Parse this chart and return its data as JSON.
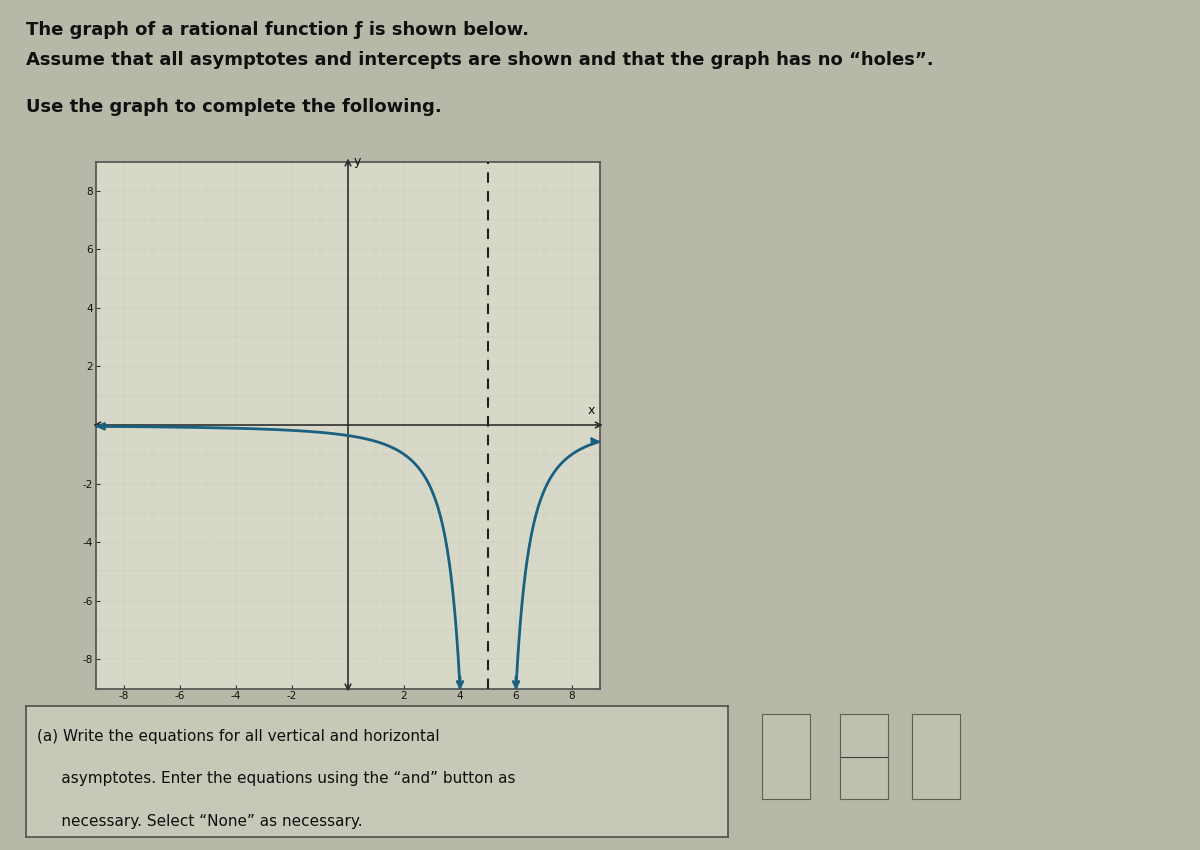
{
  "title_line1": "The graph of a rational function ƒ is shown below.",
  "title_line2": "Assume that all asymptotes and intercepts are shown and that the graph has no “holes”.",
  "title_line3": "Use the graph to complete the following.",
  "bg_color": "#b8b8a8",
  "plot_bg_color": "#d8d8c8",
  "grid_color_major": "#a8b0a0",
  "grid_color_minor": "#c0c8b8",
  "curve_color": "#1a6080",
  "axis_color": "#303030",
  "asymptote_color": "#202020",
  "text_color": "#101010",
  "xlim": [
    -9,
    9
  ],
  "ylim": [
    -9,
    9
  ],
  "xticks": [
    -8,
    -6,
    -4,
    -2,
    2,
    4,
    6,
    8
  ],
  "yticks": [
    -8,
    -6,
    -4,
    -2,
    2,
    4,
    6,
    8
  ],
  "vertical_asymptote": 5,
  "horizontal_asymptote": 0,
  "font_size_title": 13,
  "font_size_question": 11,
  "curve_lw": 2.0,
  "question_text_line1": "(a) Write the equations for all vertical and horizontal",
  "question_text_line2": "     asymptotes. Enter the equations using the “and” button as",
  "question_text_line3": "     necessary. Select “None” as necessary."
}
